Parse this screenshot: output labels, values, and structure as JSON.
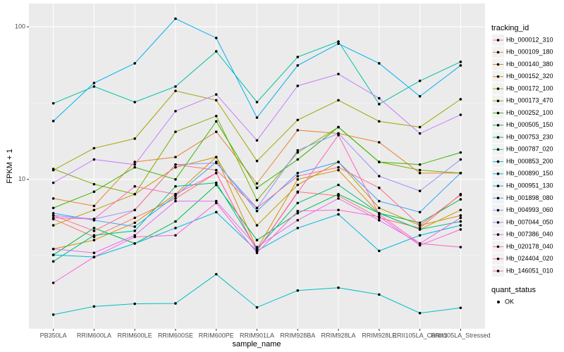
{
  "chart_data": {
    "type": "line",
    "x_label": "sample_name",
    "y_label": "FPKM + 1",
    "log_scale": true,
    "grid": true,
    "legend_title": "tracking_id",
    "legend_position": "right",
    "shape_legend": {
      "title": "quant_status",
      "labels": [
        "OK"
      ]
    },
    "categories": [
      "PB350LA",
      "RRIM600LA",
      "RRIM600LE",
      "RRIM600SE",
      "RRIM600PE",
      "RRIM901LA",
      "RRIM928BA",
      "RRIM928LA",
      "RRIM928LE",
      "RRII105LA_Control",
      "RRII105LA_Stressed"
    ],
    "ylim": [
      1.05,
      142
    ],
    "yticks": [
      10,
      100
    ],
    "series": [
      {
        "name": "Hb_000012_310",
        "color": "#F8766D",
        "values": [
          5.5,
          4.2,
          5.6,
          7.5,
          11,
          3.4,
          8.3,
          7.8,
          5.6,
          4.8,
          8
        ]
      },
      {
        "name": "Hb_000109_180",
        "color": "#EA8331",
        "values": [
          7.5,
          6.7,
          13,
          14,
          20.5,
          9.4,
          21,
          20,
          17.5,
          11,
          11
        ]
      },
      {
        "name": "Hb_000140_380",
        "color": "#D89000",
        "values": [
          3.5,
          4,
          5.2,
          8,
          14,
          3.5,
          10,
          11.5,
          6,
          4.7,
          6.3
        ]
      },
      {
        "name": "Hb_000152_320",
        "color": "#C09B00",
        "values": [
          5,
          6.3,
          8,
          12,
          14,
          5,
          9.2,
          13,
          6.5,
          5,
          5.8
        ]
      },
      {
        "name": "Hb_000172_100",
        "color": "#A3A500",
        "values": [
          11.5,
          16,
          18.5,
          38,
          33,
          13.2,
          24.5,
          33,
          24,
          22,
          33.5
        ]
      },
      {
        "name": "Hb_000173_470",
        "color": "#7CAE00",
        "values": [
          11.7,
          9.3,
          8,
          20.5,
          26,
          7.3,
          15,
          22,
          13,
          11.5,
          11
        ]
      },
      {
        "name": "Hb_000252_100",
        "color": "#39B600",
        "values": [
          6.5,
          8.3,
          12,
          10,
          24,
          8.8,
          13.5,
          22,
          13,
          12.5,
          15
        ]
      },
      {
        "name": "Hb_000505_150",
        "color": "#00BB4E",
        "values": [
          3.2,
          4.8,
          3.8,
          5.3,
          9.2,
          4,
          6,
          8,
          6,
          5.2,
          7.4
        ]
      },
      {
        "name": "Hb_000753_230",
        "color": "#00BF7D",
        "values": [
          2.9,
          4.3,
          4.6,
          9,
          9.5,
          3.5,
          7,
          9.2,
          6,
          4.7,
          5.3
        ]
      },
      {
        "name": "Hb_000787_020",
        "color": "#00C1A3",
        "values": [
          31.5,
          40.6,
          32.1,
          40.6,
          69,
          32.1,
          63.4,
          80,
          31.1,
          44.2,
          58.9
        ]
      },
      {
        "name": "Hb_000853_200",
        "color": "#00BFC4",
        "values": [
          1.3,
          1.47,
          1.53,
          1.54,
          2.39,
          1.45,
          1.87,
          1.95,
          1.76,
          1.33,
          1.44
        ]
      },
      {
        "name": "Hb_000890_150",
        "color": "#00BAE0",
        "values": [
          3.2,
          3.1,
          3.8,
          4.8,
          6.1,
          3.4,
          4.8,
          5.9,
          3.4,
          4.3,
          5
        ]
      },
      {
        "name": "Hb_000951_130",
        "color": "#00B0F6",
        "values": [
          24.1,
          42.8,
          57.6,
          113,
          84.4,
          25.4,
          55.8,
          77.5,
          57.6,
          35,
          55.8
        ]
      },
      {
        "name": "Hb_001898_080",
        "color": "#35A2FF",
        "values": [
          6,
          5.4,
          4.9,
          7.8,
          13,
          6.2,
          11,
          13,
          7.2,
          6.1,
          11
        ]
      },
      {
        "name": "Hb_004993_060",
        "color": "#9590FF",
        "values": [
          5.8,
          5.5,
          6.3,
          12.5,
          12.8,
          6.5,
          15.5,
          20,
          10.5,
          8.4,
          13.5
        ]
      },
      {
        "name": "Hb_007044_050",
        "color": "#C77CFF",
        "values": [
          9.5,
          13.5,
          12.5,
          28,
          36,
          18,
          41,
          49,
          34,
          20,
          26.5
        ]
      },
      {
        "name": "Hb_007386_040",
        "color": "#E76BF3",
        "values": [
          3.5,
          3.3,
          4.3,
          7.2,
          7.2,
          3.6,
          5.4,
          7.5,
          5.4,
          3.8,
          5.6
        ]
      },
      {
        "name": "Hb_020178_040",
        "color": "#FA62DB",
        "values": [
          2.1,
          3.1,
          4.2,
          4.3,
          7,
          3.3,
          6.2,
          6.3,
          5.7,
          3.7,
          4.7
        ]
      },
      {
        "name": "Hb_024404_020",
        "color": "#FF62BC",
        "values": [
          5.6,
          5.5,
          9,
          8,
          11,
          3.4,
          8.2,
          19.5,
          5.9,
          3.8,
          3.6
        ]
      },
      {
        "name": "Hb_146051_010",
        "color": "#FF6C91",
        "values": [
          5.8,
          4.6,
          6.3,
          12.5,
          11.5,
          6.5,
          10.5,
          12,
          8.8,
          5,
          7.9
        ]
      }
    ]
  }
}
